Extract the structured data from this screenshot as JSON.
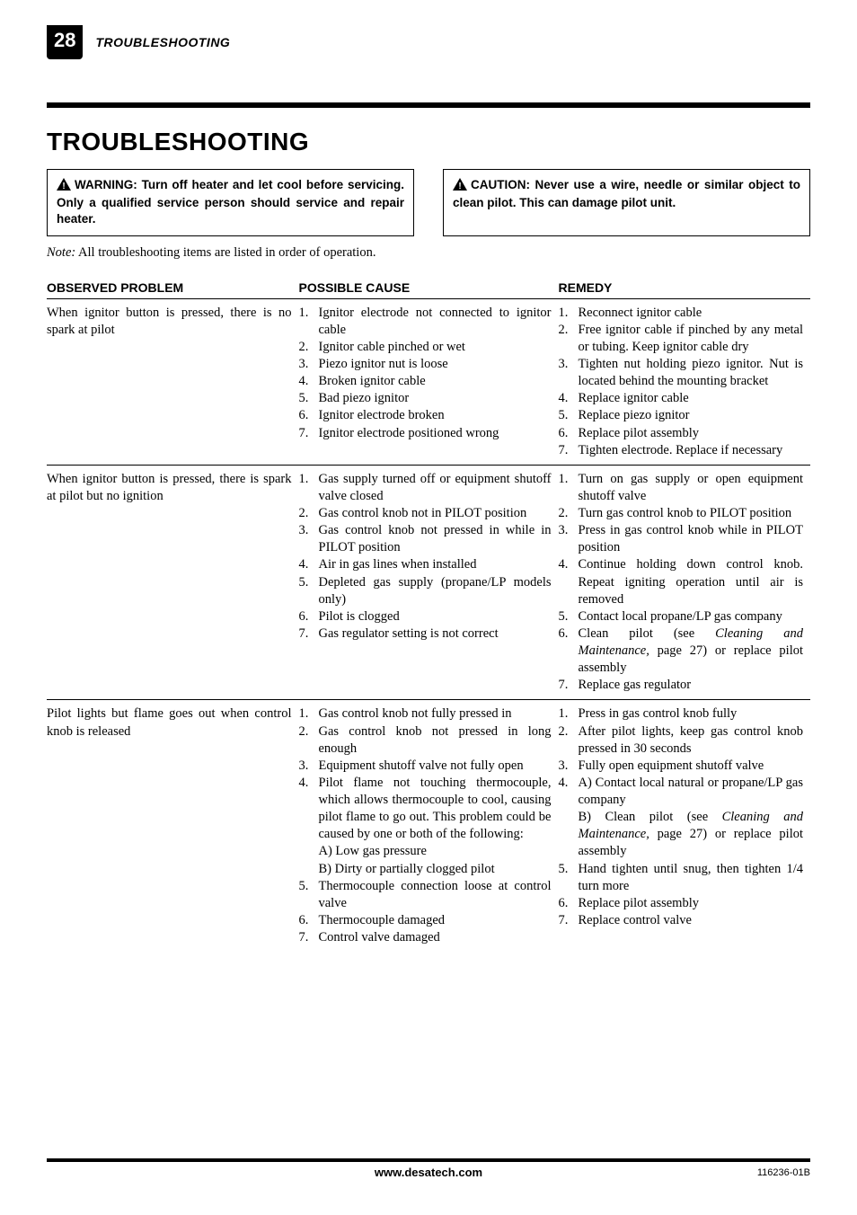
{
  "page_number": "28",
  "running_head": "TROUBLESHOOTING",
  "title": "TROUBLESHOOTING",
  "warning_label": "WARNING: Turn off heater and let cool before servicing. Only a qualified service person should service and repair heater.",
  "caution_label": "CAUTION: Never use a wire, needle or similar object to clean pilot. This can damage pilot unit.",
  "note_prefix": "Note:",
  "note_body": " All troubleshooting items are listed in order of operation.",
  "col_problem": "OBSERVED PROBLEM",
  "col_cause": "POSSIBLE CAUSE",
  "col_remedy": "REMEDY",
  "rows": [
    {
      "problem": "When ignitor button is pressed, there is no spark at pilot",
      "causes": [
        {
          "n": "1.",
          "t": "Ignitor electrode not connected to ignitor cable"
        },
        {
          "n": "2.",
          "t": "Ignitor cable pinched or wet"
        },
        {
          "n": "3.",
          "t": "Piezo ignitor nut is loose"
        },
        {
          "n": "4.",
          "t": "Broken ignitor cable"
        },
        {
          "n": "5.",
          "t": "Bad piezo ignitor"
        },
        {
          "n": "6.",
          "t": "Ignitor electrode broken"
        },
        {
          "n": "7.",
          "t": "Ignitor electrode positioned wrong"
        }
      ],
      "remedies": [
        {
          "n": "1.",
          "t": "Reconnect ignitor cable"
        },
        {
          "n": "2.",
          "t": "Free ignitor cable if pinched by any metal or tubing. Keep ignitor cable dry"
        },
        {
          "n": "3.",
          "t": "Tighten nut holding piezo ignitor. Nut is located behind the mounting bracket"
        },
        {
          "n": "4.",
          "t": "Replace ignitor cable"
        },
        {
          "n": "5.",
          "t": "Replace piezo ignitor"
        },
        {
          "n": "6.",
          "t": "Replace pilot assembly"
        },
        {
          "n": "7.",
          "t": "Tighten electrode. Replace if necessary"
        }
      ]
    },
    {
      "problem": "When ignitor button is pressed, there is spark at pilot but no ignition",
      "causes": [
        {
          "n": "1.",
          "t": "Gas supply turned off or equipment shutoff valve closed"
        },
        {
          "n": "2.",
          "t": "Gas control knob not in PILOT position"
        },
        {
          "n": "3.",
          "t": "Gas control knob not pressed in while in PILOT position"
        },
        {
          "n": "4.",
          "t": "Air in gas lines when installed"
        },
        {
          "n": "5.",
          "t": "Depleted gas supply (propane/LP models only)"
        },
        {
          "n": "6.",
          "t": "Pilot is clogged"
        },
        {
          "n": "7.",
          "t": "Gas regulator setting is not correct"
        }
      ],
      "remedies": [
        {
          "n": "1.",
          "t": "Turn on gas supply or open equipment shutoff valve"
        },
        {
          "n": "2.",
          "t": "Turn gas control knob to PILOT position"
        },
        {
          "n": "3.",
          "t": "Press in gas control knob while in PILOT position"
        },
        {
          "n": "4.",
          "t": "Continue holding down control knob. Repeat igniting operation until air is removed"
        },
        {
          "n": "5.",
          "t": "Contact local propane/LP gas company"
        },
        {
          "n": "6.",
          "t": "Clean pilot (see <span class=\"ital\">Cleaning and Maintenance,</span> page 27) or replace pilot assembly"
        },
        {
          "n": "7.",
          "t": "Replace gas regulator"
        }
      ]
    },
    {
      "problem": "Pilot lights but flame goes out when control knob is released",
      "causes": [
        {
          "n": "1.",
          "t": "Gas control knob not fully pressed in"
        },
        {
          "n": "2.",
          "t": "Gas control knob not pressed in long enough"
        },
        {
          "n": "3.",
          "t": "Equipment shutoff valve not fully open"
        },
        {
          "n": "4.",
          "t": "Pilot flame not touching thermocouple, which allows thermocouple to cool, causing pilot flame to go out. This problem could be caused by one or both of the following:<br>A) Low gas pressure<br>B) Dirty or partially clogged pilot"
        },
        {
          "n": "5.",
          "t": "Thermocouple connection loose at control valve"
        },
        {
          "n": "6.",
          "t": "Thermocouple damaged"
        },
        {
          "n": "7.",
          "t": "Control valve damaged"
        }
      ],
      "remedies": [
        {
          "n": "1.",
          "t": "Press in gas control knob fully"
        },
        {
          "n": "2.",
          "t": "After pilot lights, keep gas control knob pressed in 30 seconds"
        },
        {
          "n": "3.",
          "t": "Fully open equipment shutoff valve"
        },
        {
          "n": "4.",
          "t": "A) Contact local natural or propane/LP gas company<br>B) Clean pilot (see <span class=\"ital\">Cleaning and Maintenance,</span> page 27) or replace pilot assembly"
        },
        {
          "n": "5.",
          "t": "Hand tighten until snug, then tighten 1/4 turn more"
        },
        {
          "n": "6.",
          "t": "Replace pilot assembly"
        },
        {
          "n": "7.",
          "t": "Replace control valve"
        }
      ]
    }
  ],
  "footer_site": "www.desatech.com",
  "footer_doc": "116236-01B"
}
